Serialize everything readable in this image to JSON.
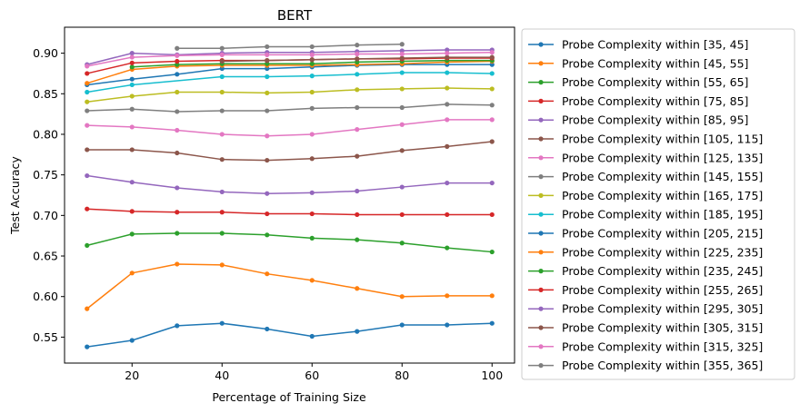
{
  "chart_data": {
    "type": "line",
    "title": "BERT",
    "xlabel": "Percentage of Training Size",
    "ylabel": "Test Accuracy",
    "xlim": [
      5,
      105
    ],
    "ylim": [
      0.518,
      0.932
    ],
    "xticks": [
      20,
      40,
      60,
      80,
      100
    ],
    "yticks": [
      0.55,
      0.6,
      0.65,
      0.7,
      0.75,
      0.8,
      0.85,
      0.9
    ],
    "ytick_labels": [
      "0.55",
      "0.60",
      "0.65",
      "0.70",
      "0.75",
      "0.80",
      "0.85",
      "0.90"
    ],
    "grid": false,
    "legend_position": "outside-right",
    "series": [
      {
        "name": "Probe Complexity within [35, 45]",
        "color": "#1f77b4",
        "x": [
          10,
          20,
          30,
          40,
          50,
          60,
          70,
          80,
          90,
          100
        ],
        "y": [
          0.538,
          0.546,
          0.564,
          0.567,
          0.56,
          0.551,
          0.557,
          0.565,
          0.565,
          0.567
        ]
      },
      {
        "name": "Probe Complexity within [45, 55]",
        "color": "#ff7f0e",
        "x": [
          10,
          20,
          30,
          40,
          50,
          60,
          70,
          80,
          90,
          100
        ],
        "y": [
          0.585,
          0.629,
          0.64,
          0.639,
          0.628,
          0.62,
          0.61,
          0.6,
          0.601,
          0.601
        ]
      },
      {
        "name": "Probe Complexity within [55, 65]",
        "color": "#2ca02c",
        "x": [
          10,
          20,
          30,
          40,
          50,
          60,
          70,
          80,
          90,
          100
        ],
        "y": [
          0.663,
          0.677,
          0.678,
          0.678,
          0.676,
          0.672,
          0.67,
          0.666,
          0.66,
          0.655
        ]
      },
      {
        "name": "Probe Complexity within [75, 85]",
        "color": "#d62728",
        "x": [
          10,
          20,
          30,
          40,
          50,
          60,
          70,
          80,
          90,
          100
        ],
        "y": [
          0.708,
          0.705,
          0.704,
          0.704,
          0.702,
          0.702,
          0.701,
          0.701,
          0.701,
          0.701
        ]
      },
      {
        "name": "Probe Complexity within [85, 95]",
        "color": "#9467bd",
        "x": [
          10,
          20,
          30,
          40,
          50,
          60,
          70,
          80,
          90,
          100
        ],
        "y": [
          0.749,
          0.741,
          0.734,
          0.729,
          0.727,
          0.728,
          0.73,
          0.735,
          0.74,
          0.74
        ]
      },
      {
        "name": "Probe Complexity within [105, 115]",
        "color": "#8c564b",
        "x": [
          10,
          20,
          30,
          40,
          50,
          60,
          70,
          80,
          90,
          100
        ],
        "y": [
          0.781,
          0.781,
          0.777,
          0.769,
          0.768,
          0.77,
          0.773,
          0.78,
          0.785,
          0.791
        ]
      },
      {
        "name": "Probe Complexity within [125, 135]",
        "color": "#e377c2",
        "x": [
          10,
          20,
          30,
          40,
          50,
          60,
          70,
          80,
          90,
          100
        ],
        "y": [
          0.811,
          0.809,
          0.805,
          0.8,
          0.798,
          0.8,
          0.806,
          0.812,
          0.818,
          0.818
        ]
      },
      {
        "name": "Probe Complexity within [145, 155]",
        "color": "#7f7f7f",
        "x": [
          10,
          20,
          30,
          40,
          50,
          60,
          70,
          80,
          90,
          100
        ],
        "y": [
          0.829,
          0.831,
          0.828,
          0.829,
          0.829,
          0.832,
          0.833,
          0.833,
          0.837,
          0.836
        ]
      },
      {
        "name": "Probe Complexity within [165, 175]",
        "color": "#bcbd22",
        "x": [
          10,
          20,
          30,
          40,
          50,
          60,
          70,
          80,
          90,
          100
        ],
        "y": [
          0.84,
          0.847,
          0.852,
          0.852,
          0.851,
          0.852,
          0.855,
          0.856,
          0.857,
          0.856
        ]
      },
      {
        "name": "Probe Complexity within [185, 195]",
        "color": "#17becf",
        "x": [
          10,
          20,
          40,
          50,
          60,
          70,
          80,
          90,
          100
        ],
        "y": [
          0.852,
          0.861,
          0.871,
          0.871,
          0.872,
          0.874,
          0.876,
          0.876,
          0.875
        ]
      },
      {
        "name": "Probe Complexity within [205, 215]",
        "color": "#1f77b4",
        "x": [
          10,
          20,
          30,
          40,
          50,
          60,
          70,
          80,
          90,
          100
        ],
        "y": [
          0.861,
          0.868,
          0.874,
          0.881,
          0.881,
          0.883,
          0.885,
          0.886,
          0.886,
          0.886
        ]
      },
      {
        "name": "Probe Complexity within [225, 235]",
        "color": "#ff7f0e",
        "x": [
          10,
          20,
          30,
          40,
          50,
          60,
          70,
          80,
          90,
          100
        ],
        "y": [
          0.863,
          0.88,
          0.884,
          0.885,
          0.885,
          0.885,
          0.886,
          0.887,
          0.889,
          0.89
        ]
      },
      {
        "name": "Probe Complexity within [235, 245]",
        "color": "#2ca02c",
        "x": [
          20,
          30,
          40,
          50,
          60,
          70,
          80,
          90,
          100
        ],
        "y": [
          0.883,
          0.886,
          0.887,
          0.887,
          0.887,
          0.889,
          0.89,
          0.891,
          0.891
        ]
      },
      {
        "name": "Probe Complexity within [255, 265]",
        "color": "#d62728",
        "x": [
          10,
          20,
          30,
          40,
          50,
          60,
          70,
          80,
          90,
          100
        ],
        "y": [
          0.875,
          0.888,
          0.89,
          0.891,
          0.891,
          0.892,
          0.893,
          0.893,
          0.894,
          0.894
        ]
      },
      {
        "name": "Probe Complexity within [295, 305]",
        "color": "#9467bd",
        "x": [
          10,
          20,
          30,
          40,
          50,
          60,
          70,
          80,
          90,
          100
        ],
        "y": [
          0.886,
          0.9,
          0.898,
          0.9,
          0.901,
          0.901,
          0.902,
          0.903,
          0.904,
          0.904
        ]
      },
      {
        "name": "Probe Complexity within [305, 315]",
        "color": "#8c564b",
        "x": [
          40,
          50,
          60,
          70,
          80,
          90,
          100
        ],
        "y": [
          0.89,
          0.891,
          0.892,
          0.893,
          0.894,
          0.895,
          0.895
        ]
      },
      {
        "name": "Probe Complexity within [315, 325]",
        "color": "#e377c2",
        "x": [
          10,
          20,
          30,
          40,
          50,
          60,
          70,
          80,
          90,
          100
        ],
        "y": [
          0.884,
          0.895,
          0.897,
          0.898,
          0.898,
          0.898,
          0.899,
          0.899,
          0.9,
          0.901
        ]
      },
      {
        "name": "Probe Complexity within [355, 365]",
        "color": "#7f7f7f",
        "x": [
          30,
          40,
          50,
          60,
          70,
          80
        ],
        "y": [
          0.906,
          0.906,
          0.908,
          0.908,
          0.91,
          0.911
        ]
      }
    ]
  }
}
